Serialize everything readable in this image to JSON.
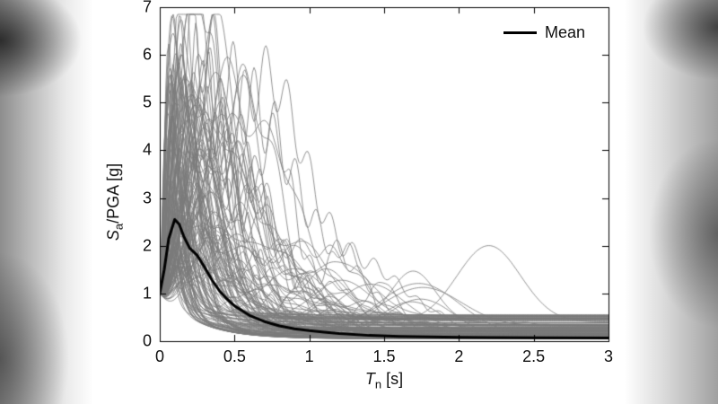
{
  "figure": {
    "axes": {
      "xlabel": {
        "var": "T",
        "sub": "n",
        "rest": " [s]"
      },
      "ylabel": {
        "var": "S",
        "sub": "a",
        "rest": "/PGA [g]"
      }
    }
  },
  "chart_data": {
    "type": "line",
    "title": "",
    "xlabel": "T_n [s]",
    "ylabel": "S_a/PGA [g]",
    "xlim": [
      0,
      3
    ],
    "ylim": [
      0,
      7
    ],
    "grid": false,
    "xticks": [
      0,
      0.5,
      1,
      1.5,
      2,
      2.5,
      3
    ],
    "xtick_labels": [
      "0",
      "0.5",
      "1",
      "1.5",
      "2",
      "2.5",
      "3"
    ],
    "yticks": [
      0,
      1,
      2,
      3,
      4,
      5,
      6,
      7
    ],
    "ytick_labels": [
      "0",
      "1",
      "2",
      "3",
      "4",
      "5",
      "6",
      "7"
    ],
    "legend": {
      "entries": [
        "Mean"
      ],
      "position": "northeast",
      "boxed": false
    },
    "series": [
      {
        "name": "Mean",
        "color": "#000000",
        "width": 3,
        "x": [
          0,
          0.03,
          0.06,
          0.1,
          0.13,
          0.16,
          0.2,
          0.25,
          0.3,
          0.35,
          0.4,
          0.45,
          0.5,
          0.6,
          0.7,
          0.8,
          0.9,
          1.0,
          1.1,
          1.2,
          1.4,
          1.6,
          1.8,
          2.0,
          2.2,
          2.5,
          3.0
        ],
        "y": [
          1.0,
          1.5,
          2.15,
          2.55,
          2.45,
          2.2,
          1.95,
          1.8,
          1.55,
          1.28,
          1.05,
          0.88,
          0.74,
          0.54,
          0.41,
          0.32,
          0.26,
          0.22,
          0.19,
          0.16,
          0.12,
          0.1,
          0.09,
          0.08,
          0.075,
          0.07,
          0.065
        ]
      }
    ],
    "ensemble": {
      "description": "Individual normalized ground-motion response spectra plotted as thin gray lines; all start at Sa/PGA = 1 at Tn = 0, peak between ~2 and ~6.7 near Tn = 0.05-0.45 s, then decay to ~0.05-0.6 by Tn = 3 s",
      "count": 140,
      "color_rgba": "rgba(122,122,122,0.8)",
      "width": 1,
      "start_value": 1.0,
      "peak_amplitude_range": [
        2.0,
        6.7
      ],
      "peak_period_range": [
        0.05,
        0.45
      ],
      "tail_range": [
        0.05,
        0.55
      ],
      "seed": 11,
      "outlier": {
        "center": 2.2,
        "height": 1.6,
        "width": 0.3
      }
    }
  }
}
